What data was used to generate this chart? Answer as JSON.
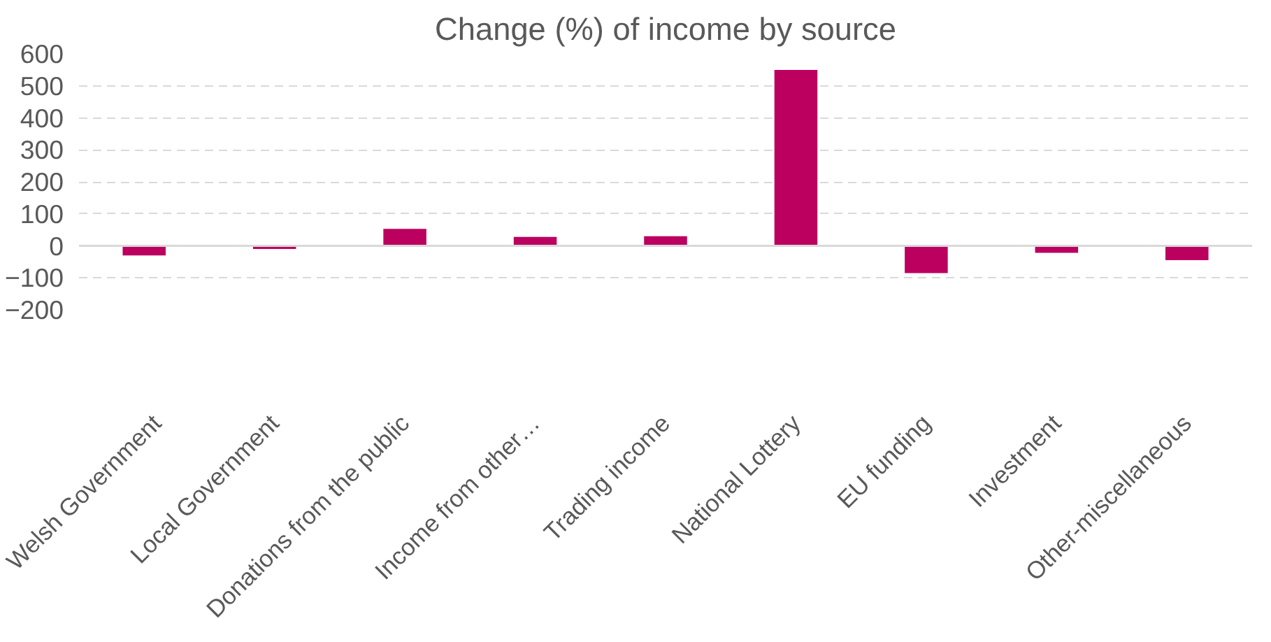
{
  "chart_data": {
    "type": "bar",
    "title": "Change (%) of income by source",
    "categories": [
      "Welsh Government",
      "Local Government",
      "Donations from the public",
      "Income from other…",
      "Trading income",
      "National Lottery",
      "EU funding",
      "Investment",
      "Other-miscellaneous"
    ],
    "values": [
      -30,
      -10,
      53,
      28,
      30,
      550,
      -85,
      -22,
      -45
    ],
    "color": "#bc0060",
    "ylim": [
      -200,
      600
    ],
    "yticks": [
      -200,
      -100,
      0,
      100,
      200,
      300,
      400,
      500,
      600
    ],
    "grid": "y"
  }
}
